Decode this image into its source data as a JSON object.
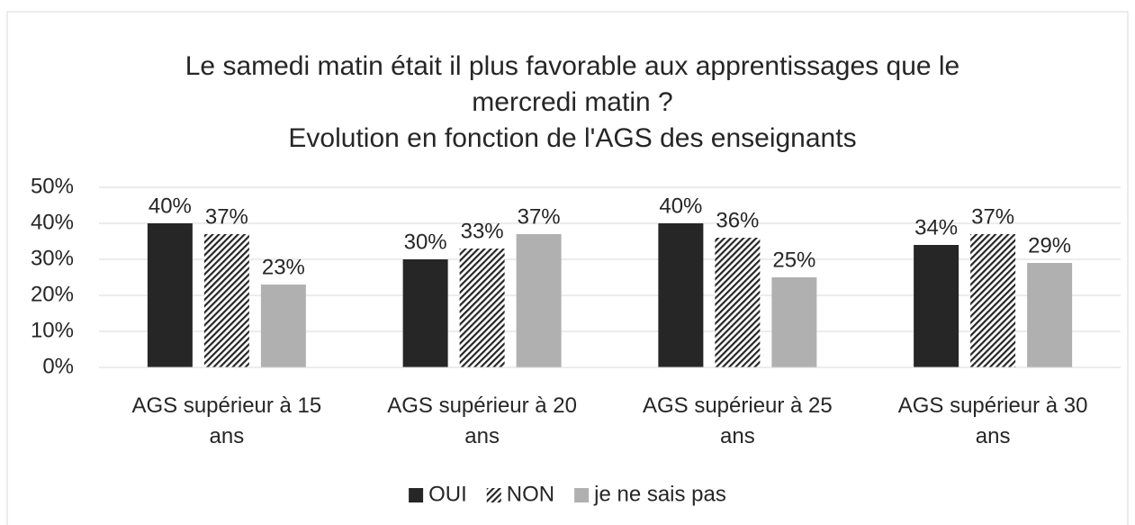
{
  "chart_data": {
    "type": "bar",
    "title": [
      "Le samedi matin était il plus favorable aux apprentissages que le",
      "mercredi matin ?"
    ],
    "subtitle": "Evolution en fonction de l'AGS des enseignants",
    "categories": [
      "AGS supérieur à 15 ans",
      "AGS supérieur à 20 ans",
      "AGS supérieur à 25 ans",
      "AGS supérieur à 30 ans"
    ],
    "series": [
      {
        "name": "OUI",
        "color": "#262626",
        "pattern": "solid",
        "values": [
          40,
          30,
          40,
          34
        ],
        "value_labels": [
          "40%",
          "30%",
          "40%",
          "34%"
        ]
      },
      {
        "name": "NON",
        "color": "#262626",
        "pattern": "hatch",
        "values": [
          37,
          33,
          36,
          37
        ],
        "value_labels": [
          "37%",
          "33%",
          "36%",
          "37%"
        ]
      },
      {
        "name": "je ne sais pas",
        "color": "#b0b0b0",
        "pattern": "solid",
        "values": [
          23,
          37,
          25,
          29
        ],
        "value_labels": [
          "23%",
          "37%",
          "25%",
          "29%"
        ]
      }
    ],
    "ylim": [
      0,
      50
    ],
    "yticks": [
      {
        "value": 0,
        "label": "0%"
      },
      {
        "value": 10,
        "label": "10%"
      },
      {
        "value": 20,
        "label": "20%"
      },
      {
        "value": 30,
        "label": "30%"
      },
      {
        "value": 40,
        "label": "40%"
      },
      {
        "value": 50,
        "label": "50%"
      }
    ],
    "grid": true,
    "legend": "bottom"
  }
}
